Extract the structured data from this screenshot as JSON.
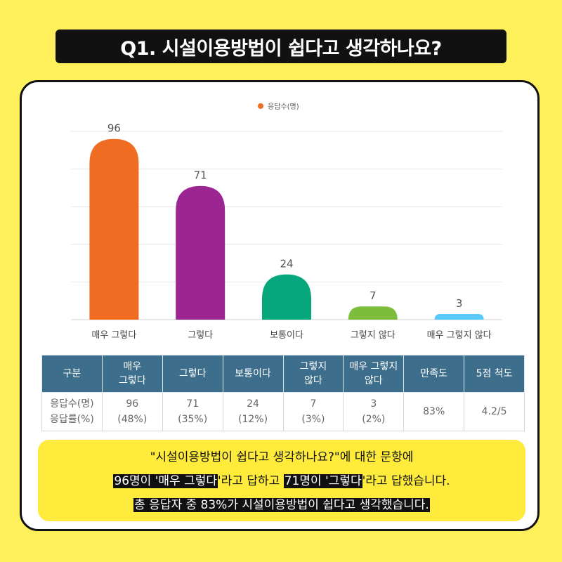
{
  "title": "Q1. 시설이용방법이 쉽다고 생각하나요?",
  "chart_data": {
    "type": "bar",
    "categories": [
      "매우 그렇다",
      "그렇다",
      "보통이다",
      "그렇지 않다",
      "매우 그렇지 않다"
    ],
    "series": [
      {
        "name": "응답수(명)",
        "values": [
          96,
          71,
          24,
          7,
          3
        ]
      }
    ],
    "data_labels": [
      "96",
      "71",
      "24",
      "7",
      "3"
    ],
    "colors": [
      "#f06c22",
      "#9b2692",
      "#06a77d",
      "#7cbd3b",
      "#5ac8fa"
    ],
    "legend_color": "#f06c22",
    "ylim": [
      0,
      100
    ],
    "grid": true,
    "legend_position": "top-center"
  },
  "table": {
    "headers": [
      [
        "구분"
      ],
      [
        "매우",
        "그렇다"
      ],
      [
        "그렇다"
      ],
      [
        "보통이다"
      ],
      [
        "그렇지",
        "않다"
      ],
      [
        "매우 그렇지",
        "않다"
      ],
      [
        "만족도"
      ],
      [
        "5점 척도"
      ]
    ],
    "row": [
      [
        "응답수(명)",
        "응답률(%)"
      ],
      [
        "96",
        "(48%)"
      ],
      [
        "71",
        "(35%)"
      ],
      [
        "24",
        "(12%)"
      ],
      [
        "7",
        "(3%)"
      ],
      [
        "3",
        "(2%)"
      ],
      [
        "83%"
      ],
      [
        "4.2/5"
      ]
    ]
  },
  "summary": {
    "line1": "\"시설이용방법이 쉽다고 생각하나요?\"에 대한 문항에",
    "line2": {
      "h1": "96명이 '매우 그렇다",
      "t1": "'라고 답하고 ",
      "h2": "71명이 '그렇다",
      "t2": "'라고 답했습니다."
    },
    "line3": "총 응답자 중 83%가 시설이용방법이 쉽다고 생각했습니다."
  }
}
